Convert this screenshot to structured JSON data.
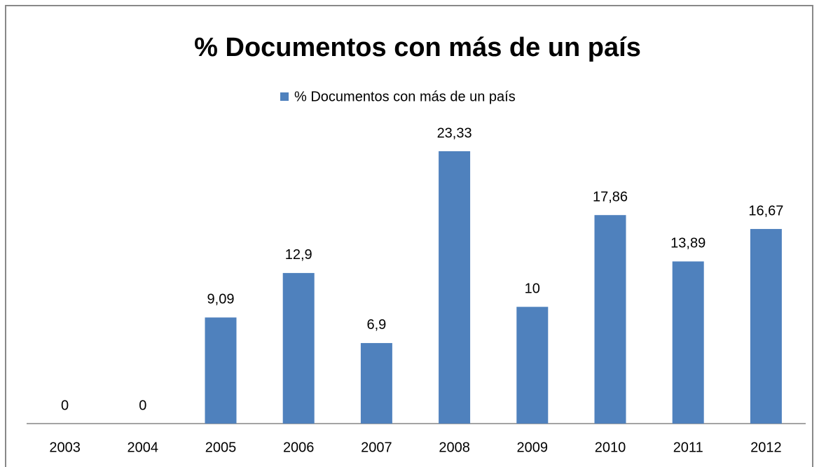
{
  "chart_data": {
    "type": "bar",
    "title": "%  Documentos con más de un país",
    "categories": [
      "2003",
      "2004",
      "2005",
      "2006",
      "2007",
      "2008",
      "2009",
      "2010",
      "2011",
      "2012"
    ],
    "series": [
      {
        "name": "%  Documentos con más de un país",
        "color": "#4f81bd",
        "values": [
          0,
          0,
          9.09,
          12.9,
          6.9,
          23.33,
          10,
          17.86,
          13.89,
          16.67
        ],
        "value_labels": [
          "0",
          "0",
          "9,09",
          "12,9",
          "6,9",
          "23,33",
          "10",
          "17,86",
          "13,89",
          "16,67"
        ]
      }
    ],
    "legend": "top"
  }
}
